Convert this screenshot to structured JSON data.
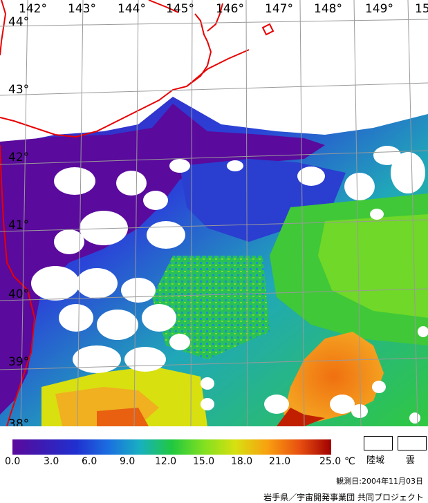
{
  "longitudes": [
    "142°",
    "143°",
    "144°",
    "145°",
    "146°",
    "147°",
    "148°",
    "149°",
    "15"
  ],
  "latitudes": [
    "44°",
    "43°",
    "42°",
    "41°",
    "40°",
    "39°",
    "38°"
  ],
  "colorbar": {
    "ticks": [
      "0.0",
      "3.0",
      "6.0",
      "9.0",
      "12.0",
      "15.0",
      "18.0",
      "21.0",
      "25.0"
    ],
    "unit": "℃",
    "colors": [
      "#5a0a9c",
      "#3a1cb4",
      "#2030d0",
      "#1a6ee0",
      "#18b0c0",
      "#20c840",
      "#80e020",
      "#d8e010",
      "#f8a010",
      "#e85010",
      "#a00000"
    ]
  },
  "legend_boxes": [
    {
      "label": "陸域"
    },
    {
      "label": "雲"
    }
  ],
  "observation_date": "観測日:2004年11月03日",
  "credit": "岩手県／宇宙開発事業団 共同プロジェクト"
}
